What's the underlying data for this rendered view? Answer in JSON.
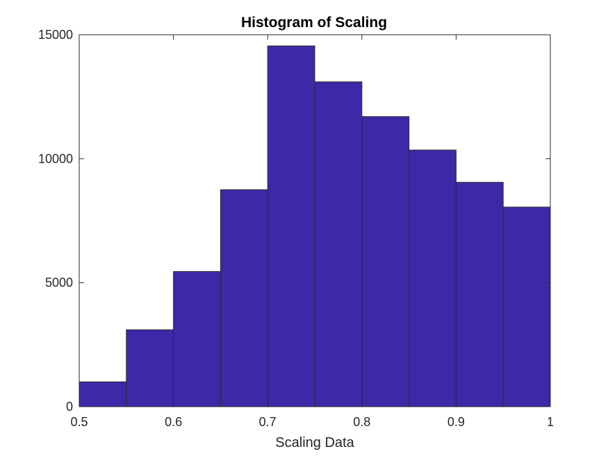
{
  "chart_data": {
    "type": "bar",
    "title": "Histogram of Scaling",
    "xlabel": "Scaling Data",
    "ylabel": "",
    "xlim": [
      0.5,
      1.0
    ],
    "ylim": [
      0,
      15000
    ],
    "bin_edges": [
      0.5,
      0.55,
      0.6,
      0.65,
      0.7,
      0.75,
      0.8,
      0.85,
      0.9,
      0.95,
      1.0
    ],
    "values": [
      1000,
      3100,
      5450,
      8750,
      14550,
      13100,
      11700,
      10350,
      9050,
      8050
    ],
    "xticks": [
      0.5,
      0.6,
      0.7,
      0.8,
      0.9,
      1.0
    ],
    "xtick_labels": [
      "0.5",
      "0.6",
      "0.7",
      "0.8",
      "0.9",
      "1"
    ],
    "yticks": [
      0,
      5000,
      10000,
      15000
    ],
    "ytick_labels": [
      "0",
      "5000",
      "10000",
      "15000"
    ],
    "bar_color": "#3e28a8",
    "edge_color": "#2b2b2b",
    "grid": false,
    "legend": false
  }
}
